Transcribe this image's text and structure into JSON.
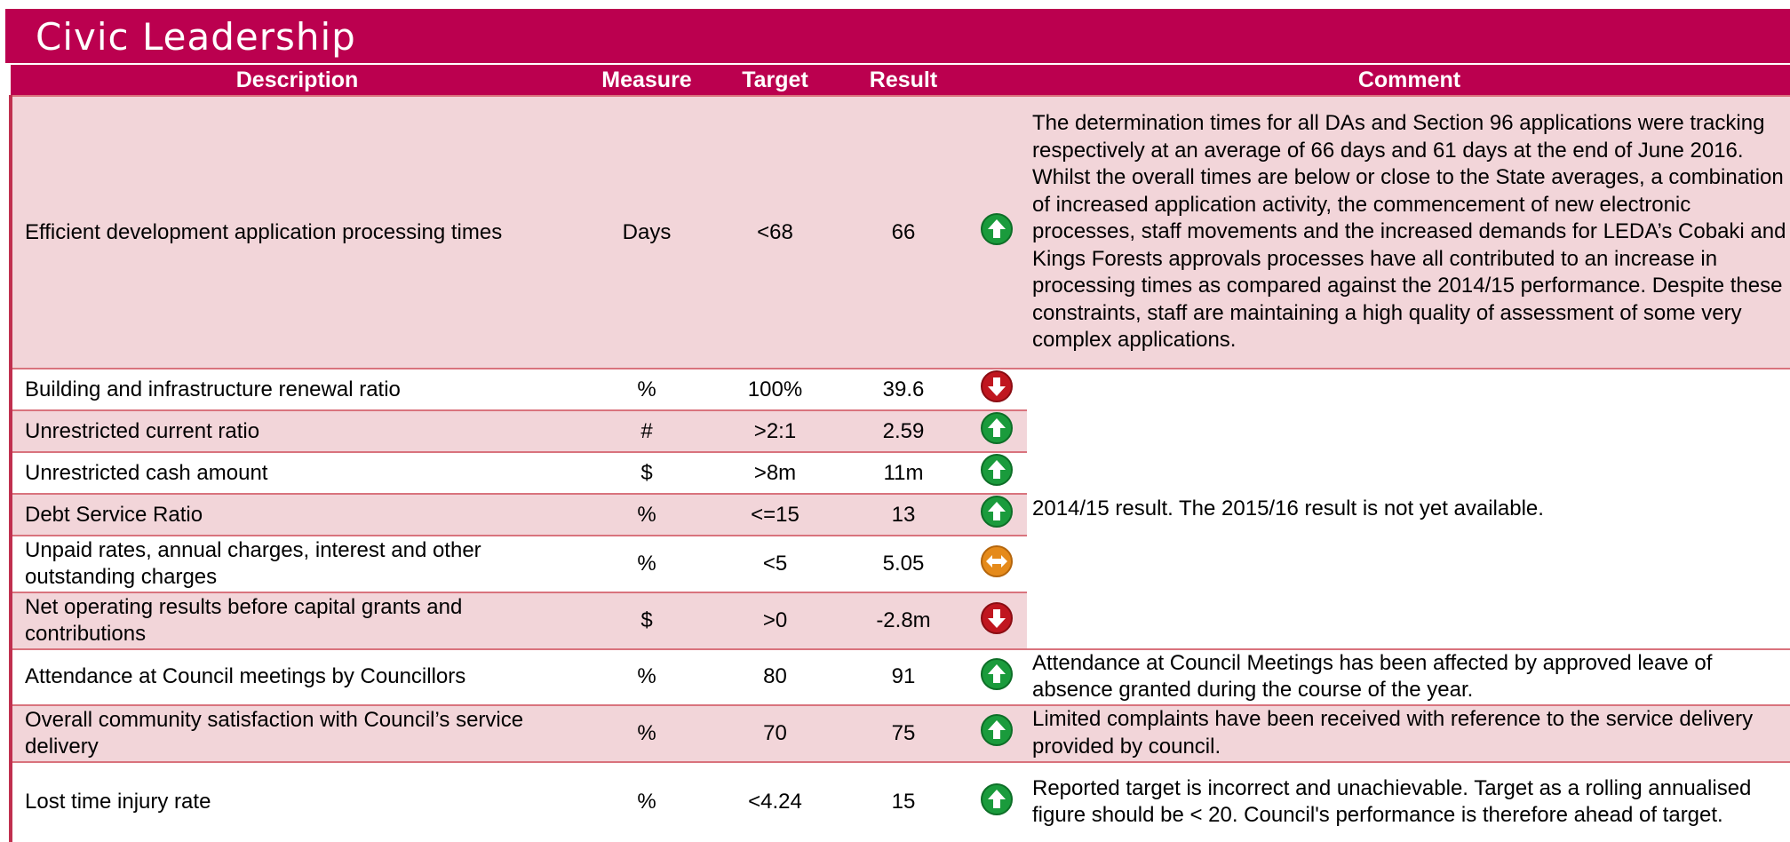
{
  "header": {
    "title": "Civic Leadership"
  },
  "table": {
    "columns": [
      "Description",
      "Measure",
      "Target",
      "Result",
      "Comment"
    ],
    "rows": [
      [
        "Efficient development application processing times",
        "Days",
        "<68",
        "66"
      ],
      [
        "Building and infrastructure renewal ratio",
        "%",
        "100%",
        "39.6"
      ],
      [
        "Unrestricted current ratio",
        "#",
        ">2:1",
        "2.59"
      ],
      [
        "Unrestricted cash amount",
        "$",
        ">8m",
        "11m"
      ],
      [
        "Debt Service Ratio",
        "%",
        "<=15",
        "13"
      ],
      [
        "Unpaid rates, annual charges, interest and other outstanding charges",
        "%",
        "<5",
        "5.05"
      ],
      [
        "Net operating results before capital grants and contributions",
        "$",
        ">0",
        "-2.8m"
      ],
      [
        "Attendance at Council meetings by Councillors",
        "%",
        "80",
        "91"
      ],
      [
        "Overall community satisfaction with Council’s service delivery",
        "%",
        "70",
        "75"
      ],
      [
        "Lost time injury rate",
        "%",
        "<4.24",
        "15"
      ]
    ],
    "comments": [
      "The determination times for all DAs and Section 96 applications were tracking respectively at an average of 66 days and 61 days at the end of June 2016. Whilst the overall times are below or close to the State averages, a combination of increased application activity, the commencement of new electronic processes, staff movements and the increased demands for LEDA’s Cobaki and Kings Forests approvals processes have all contributed to an increase in processing times as compared against the 2014/15 performance. Despite these constraints, staff are maintaining a high quality of assessment of some very complex applications.",
      "2014/15 result. The 2015/16 result is not yet available.",
      "Attendance at Council Meetings has been affected by approved leave of absence granted during the course of the year.",
      "Limited complaints have been received with reference to the service delivery provided by council.",
      "Reported target is incorrect and unachievable.  Target as a rolling annualised figure should be < 20.  Council's performance is therefore ahead of target."
    ]
  }
}
